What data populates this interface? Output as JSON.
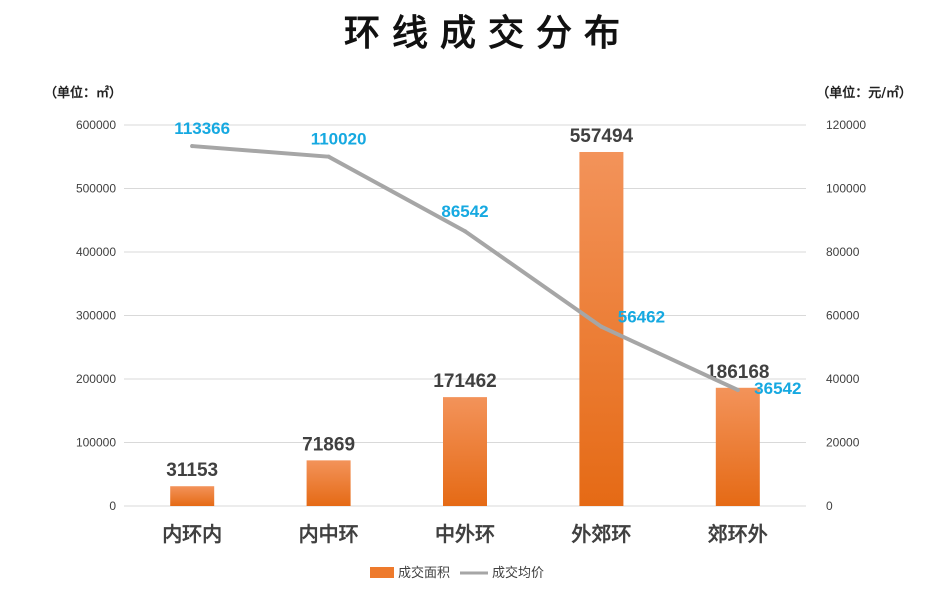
{
  "chart_data": {
    "type": "bar+line",
    "title": "环线成交分布",
    "categories": [
      "内环内",
      "内中环",
      "中外环",
      "外郊环",
      "郊环外"
    ],
    "series": [
      {
        "name": "成交面积",
        "type": "bar",
        "axis": "left",
        "values": [
          31153,
          71869,
          171462,
          557494,
          186168
        ]
      },
      {
        "name": "成交均价",
        "type": "line",
        "axis": "right",
        "values": [
          113366,
          110020,
          86542,
          56462,
          36542
        ]
      }
    ],
    "y_left": {
      "unit_label": "（单位：㎡）",
      "ylim": [
        0,
        600000
      ],
      "ticks": [
        "0",
        "100000",
        "200000",
        "300000",
        "400000",
        "500000",
        "600000"
      ]
    },
    "y_right": {
      "unit_label": "（单位：元/㎡）",
      "ylim": [
        0,
        120000
      ],
      "ticks": [
        "0",
        "20000",
        "40000",
        "60000",
        "80000",
        "100000",
        "120000"
      ]
    },
    "grid": true,
    "legend_position": "bottom",
    "colors": {
      "bar": "#ee7a2c",
      "line": "#a6a6a6",
      "line_label": "#16a9e1",
      "text": "#404040"
    }
  }
}
